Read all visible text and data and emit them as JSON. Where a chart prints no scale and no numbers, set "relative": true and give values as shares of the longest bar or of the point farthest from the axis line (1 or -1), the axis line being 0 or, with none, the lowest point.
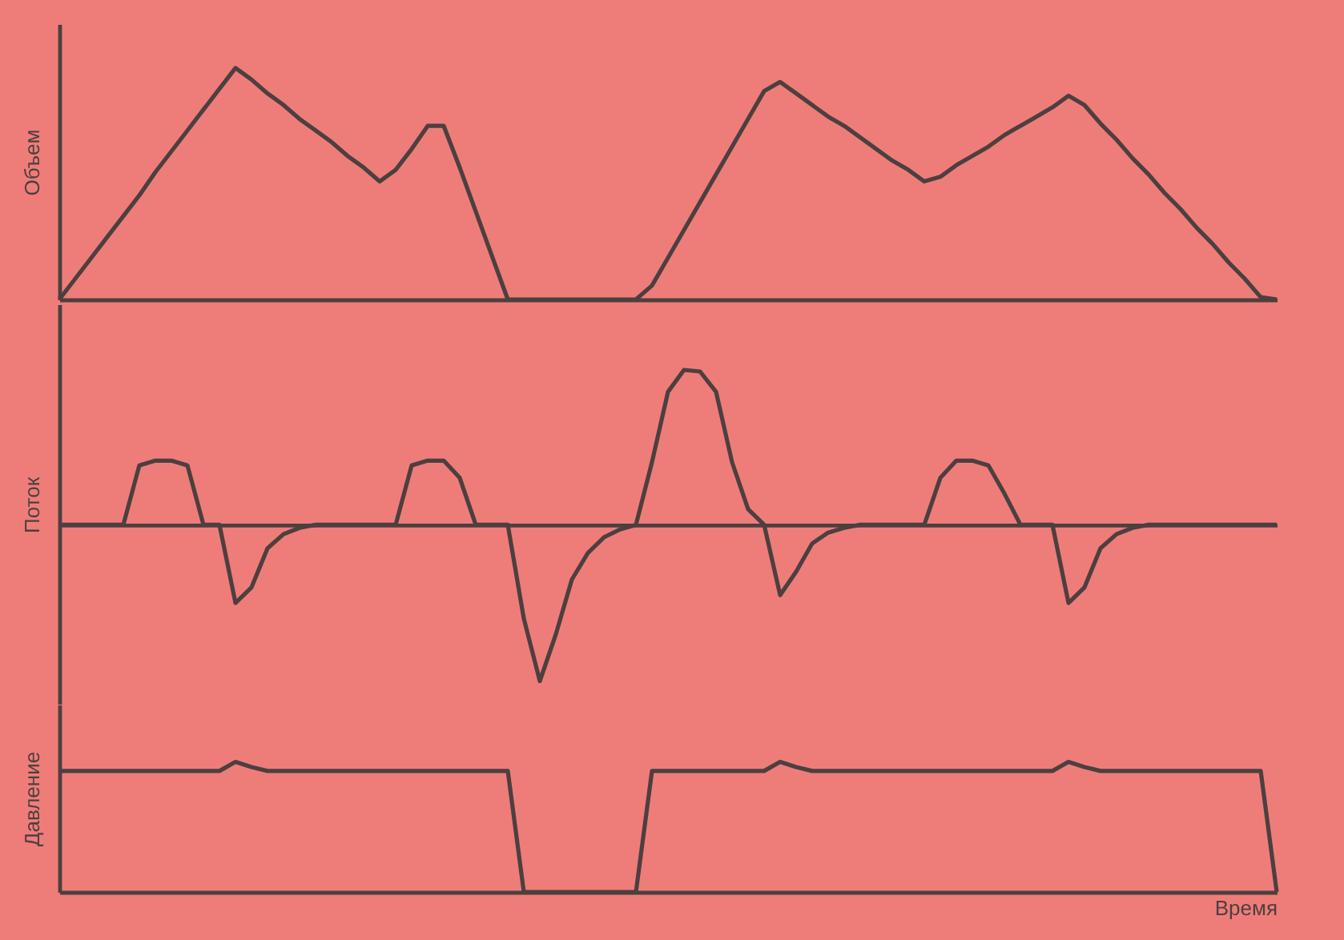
{
  "chart_data": [
    {
      "type": "line",
      "relative": true,
      "ylabel": "Объем",
      "categories": [
        null,
        null,
        null,
        null,
        null,
        null,
        null,
        null,
        null,
        null,
        null,
        null,
        null,
        null,
        null,
        null,
        null,
        null,
        null,
        null,
        null,
        null,
        null,
        null,
        null,
        null,
        null,
        null,
        null,
        null,
        null,
        null,
        null,
        null,
        null,
        null,
        null,
        null,
        null,
        null,
        null,
        null,
        null,
        null,
        null,
        null,
        null,
        null,
        null,
        null,
        null,
        null,
        null,
        null,
        null,
        null,
        null,
        null,
        null,
        null,
        null,
        null,
        null,
        null,
        null,
        null,
        null,
        null,
        null,
        null,
        null,
        null,
        null,
        null,
        null,
        null,
        null
      ],
      "series": [
        {
          "color": "#4d3f3f",
          "values": [
            0,
            0.09,
            0.18,
            0.27,
            0.36,
            0.45,
            0.55,
            0.64,
            0.73,
            0.82,
            0.91,
            1,
            0.95,
            0.89,
            0.84,
            0.78,
            0.73,
            0.68,
            0.62,
            0.57,
            0.51,
            0.56,
            0.65,
            0.75,
            0.75,
            0.57,
            0.38,
            0.19,
            0,
            0,
            0,
            0,
            0,
            0,
            0,
            0,
            0,
            0.06,
            0.18,
            0.3,
            0.42,
            0.54,
            0.66,
            0.78,
            0.9,
            0.94,
            0.89,
            0.84,
            0.79,
            0.75,
            0.7,
            0.65,
            0.6,
            0.56,
            0.51,
            0.53,
            0.58,
            0.62,
            0.66,
            0.71,
            0.75,
            0.79,
            0.83,
            0.88,
            0.84,
            0.76,
            0.69,
            0.61,
            0.54,
            0.46,
            0.39,
            0.31,
            0.24,
            0.16,
            0.09,
            0.01,
            0
          ]
        }
      ]
    },
    {
      "type": "line",
      "relative": true,
      "ylabel": "Поток",
      "categories": [
        null,
        null,
        null,
        null,
        null,
        null,
        null,
        null,
        null,
        null,
        null,
        null,
        null,
        null,
        null,
        null,
        null,
        null,
        null,
        null,
        null,
        null,
        null,
        null,
        null,
        null,
        null,
        null,
        null,
        null,
        null,
        null,
        null,
        null,
        null,
        null,
        null,
        null,
        null,
        null,
        null,
        null,
        null,
        null,
        null,
        null,
        null,
        null,
        null,
        null,
        null,
        null,
        null,
        null,
        null,
        null,
        null,
        null,
        null,
        null,
        null,
        null,
        null,
        null,
        null,
        null,
        null,
        null,
        null,
        null,
        null,
        null,
        null,
        null,
        null,
        null,
        null
      ],
      "series": [
        {
          "color": "#4d3f3f",
          "values": [
            0,
            0,
            0,
            0,
            0,
            0.38,
            0.41,
            0.41,
            0.38,
            0,
            0,
            -0.5,
            -0.4,
            -0.15,
            -0.06,
            -0.02,
            0,
            0,
            0,
            0,
            0,
            0,
            0.38,
            0.41,
            0.41,
            0.3,
            0,
            0,
            0,
            -0.6,
            -1,
            -0.7,
            -0.35,
            -0.18,
            -0.08,
            -0.03,
            0,
            0.4,
            0.85,
            0.99,
            0.98,
            0.85,
            0.4,
            0.1,
            0,
            -0.45,
            -0.3,
            -0.12,
            -0.05,
            -0.02,
            0,
            0,
            0,
            0,
            0,
            0.3,
            0.41,
            0.41,
            0.38,
            0.2,
            0,
            0,
            0,
            -0.5,
            -0.4,
            -0.15,
            -0.06,
            -0.02,
            0,
            0,
            0,
            0,
            0,
            0,
            0,
            0,
            0
          ]
        }
      ]
    },
    {
      "type": "line",
      "relative": true,
      "ylabel": "Давление",
      "xlabel": "Время",
      "categories": [
        null,
        null,
        null,
        null,
        null,
        null,
        null,
        null,
        null,
        null,
        null,
        null,
        null,
        null,
        null,
        null,
        null,
        null,
        null,
        null,
        null,
        null,
        null,
        null,
        null,
        null,
        null,
        null,
        null,
        null,
        null,
        null,
        null,
        null,
        null,
        null,
        null,
        null,
        null,
        null,
        null,
        null,
        null,
        null,
        null,
        null,
        null,
        null,
        null,
        null,
        null,
        null,
        null,
        null,
        null,
        null,
        null,
        null,
        null,
        null,
        null,
        null,
        null,
        null,
        null,
        null,
        null,
        null,
        null,
        null,
        null,
        null,
        null,
        null,
        null,
        null,
        null
      ],
      "series": [
        {
          "color": "#4d3f3f",
          "values": [
            0.93,
            0.93,
            0.93,
            0.93,
            0.93,
            0.93,
            0.93,
            0.93,
            0.93,
            0.93,
            0.93,
            1,
            0.96,
            0.93,
            0.93,
            0.93,
            0.93,
            0.93,
            0.93,
            0.93,
            0.93,
            0.93,
            0.93,
            0.93,
            0.93,
            0.93,
            0.93,
            0.93,
            0.93,
            0,
            0,
            0,
            0,
            0,
            0,
            0,
            0,
            0.93,
            0.93,
            0.93,
            0.93,
            0.93,
            0.93,
            0.93,
            0.93,
            1,
            0.96,
            0.93,
            0.93,
            0.93,
            0.93,
            0.93,
            0.93,
            0.93,
            0.93,
            0.93,
            0.93,
            0.93,
            0.93,
            0.93,
            0.93,
            0.93,
            0.93,
            1,
            0.96,
            0.93,
            0.93,
            0.93,
            0.93,
            0.93,
            0.93,
            0.93,
            0.93,
            0.93,
            0.93,
            0.93,
            0
          ]
        }
      ]
    }
  ]
}
